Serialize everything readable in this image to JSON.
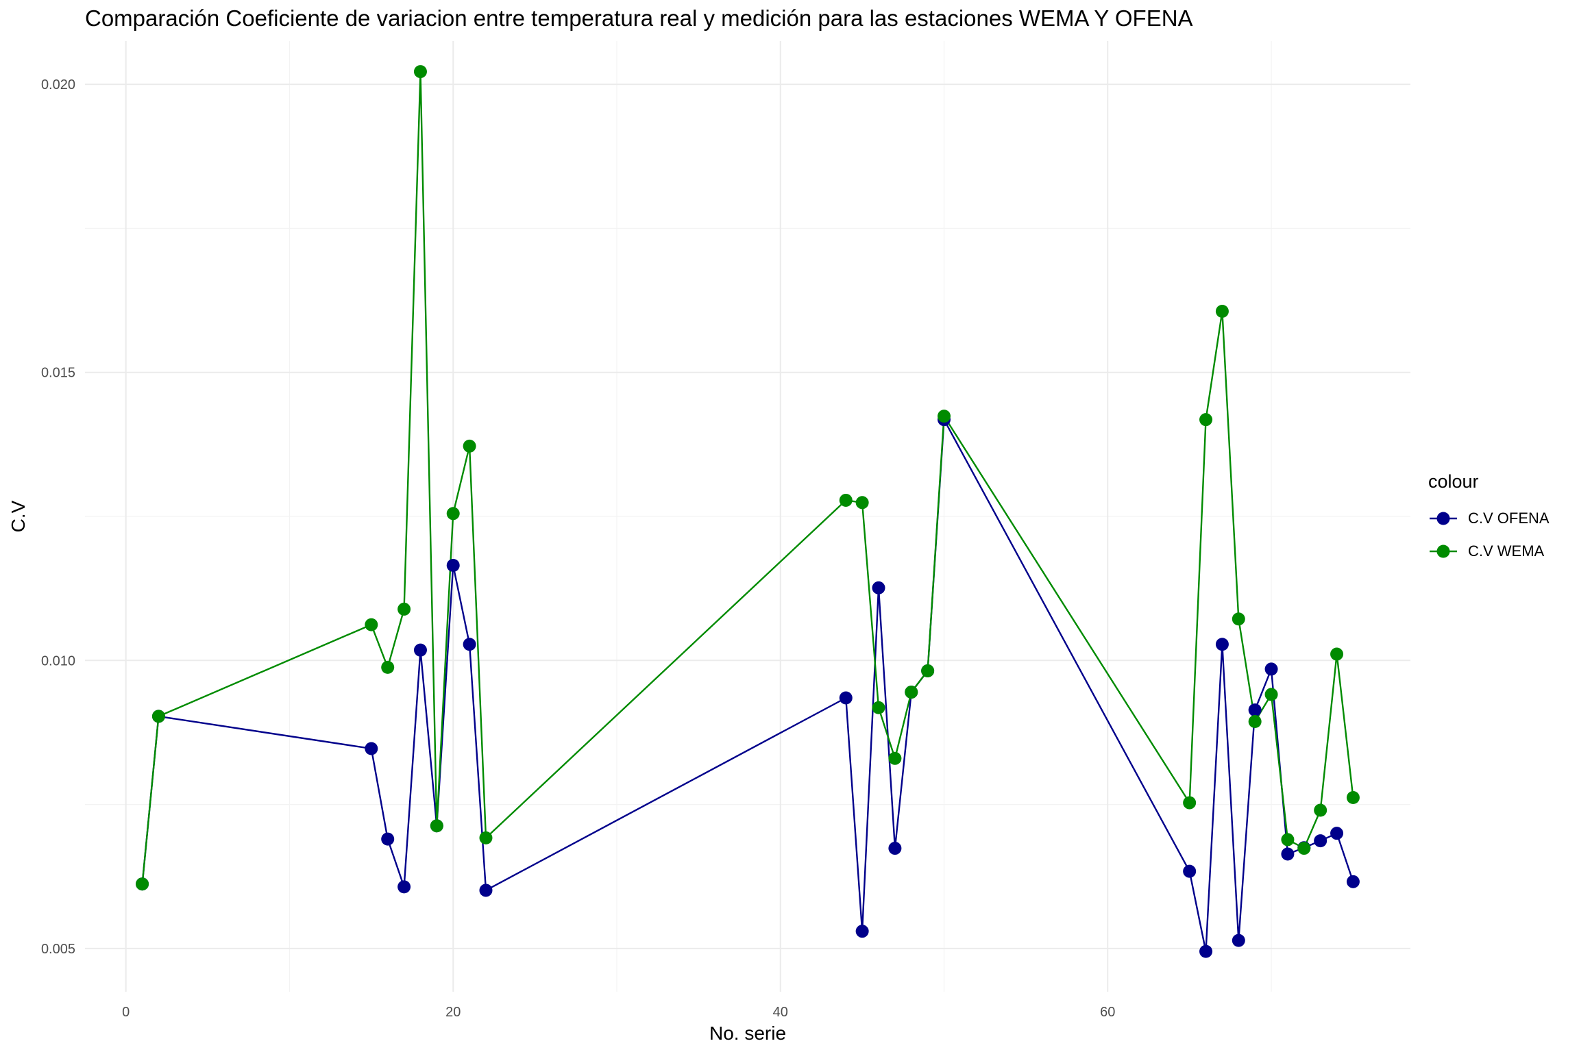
{
  "chart_data": {
    "type": "line",
    "title": "Comparación Coeficiente de variacion entre  temperatura real y medición para las estaciones WEMA Y OFENA",
    "xlabel": "No. serie",
    "ylabel": "C.V",
    "xlim": [
      -2.5,
      78.5
    ],
    "ylim": [
      0.00425,
      0.02075
    ],
    "x_ticks": [
      0,
      20,
      40,
      60
    ],
    "x_tick_labels": [
      "0",
      "20",
      "40",
      "60"
    ],
    "y_ticks": [
      0.005,
      0.01,
      0.015,
      0.02
    ],
    "y_tick_labels": [
      "0.005",
      "0.010",
      "0.015",
      "0.020"
    ],
    "grid": true,
    "legend_title": "colour",
    "legend_position": "right",
    "x": [
      1,
      2,
      15,
      16,
      17,
      18,
      19,
      20,
      21,
      22,
      44,
      45,
      46,
      47,
      48,
      49,
      50,
      65,
      66,
      67,
      68,
      69,
      70,
      71,
      72,
      73,
      74,
      75
    ],
    "series": [
      {
        "name": "C.V OFENA",
        "color": "#00008B",
        "values": [
          0.00612,
          0.00903,
          0.00847,
          0.0069,
          0.00607,
          0.01018,
          0.00713,
          0.01165,
          0.01028,
          0.00601,
          0.00935,
          0.0053,
          0.01126,
          0.00674,
          0.00945,
          0.00982,
          0.01418,
          0.00634,
          0.00495,
          0.01028,
          0.00514,
          0.00914,
          0.00985,
          0.00664,
          0.00675,
          0.00687,
          0.007,
          0.00616
        ]
      },
      {
        "name": "C.V WEMA",
        "color": "#008B00",
        "values": [
          0.00612,
          0.00903,
          0.01062,
          0.00988,
          0.01089,
          0.02022,
          0.00713,
          0.01255,
          0.01372,
          0.00692,
          0.01278,
          0.01274,
          0.00918,
          0.0083,
          0.00945,
          0.00982,
          0.01424,
          0.00753,
          0.01418,
          0.01606,
          0.01072,
          0.00894,
          0.00941,
          0.00689,
          0.00674,
          0.0074,
          0.01011,
          0.00762
        ]
      }
    ]
  }
}
